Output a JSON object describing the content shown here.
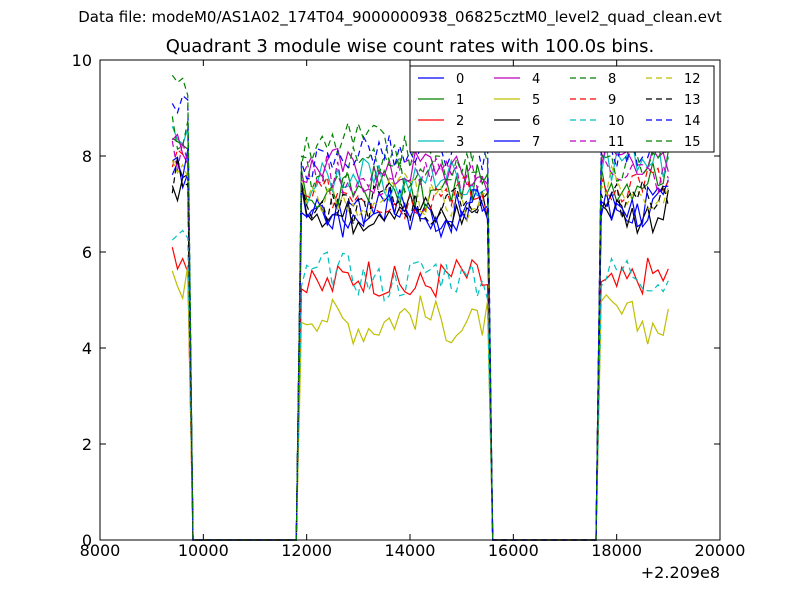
{
  "figure": {
    "suptitle": "Data file: modeM0/AS1A02_174T04_9000000938_06825cztM0_level2_quad_clean.evt",
    "title": "Quadrant 3 module wise count rates with 100.0s bins."
  },
  "chart_data": {
    "type": "line",
    "xlabel": "",
    "ylabel": "",
    "x_offset_label": "+2.209e8",
    "xlim": [
      8000,
      20000
    ],
    "ylim": [
      0,
      10
    ],
    "xticks": [
      "8000",
      "10000",
      "12000",
      "14000",
      "16000",
      "18000",
      "20000"
    ],
    "yticks": [
      "0",
      "2",
      "4",
      "6",
      "8",
      "10"
    ],
    "grid": false,
    "legend": {
      "position": "top-right",
      "columns": 4
    },
    "segments": [
      {
        "start": 9400,
        "end": 9700,
        "step": 100
      },
      {
        "start": 11900,
        "end": 15500,
        "step": 100
      },
      {
        "start": 17700,
        "end": 19000,
        "step": 100
      }
    ],
    "gaps": [
      [
        9700,
        9800,
        11800,
        11900
      ],
      [
        15500,
        15600,
        17600,
        17700
      ]
    ],
    "series": [
      {
        "name": "0",
        "color": "#0000ff",
        "dash": "solid",
        "levels": [
          7.6,
          6.9,
          7.0
        ]
      },
      {
        "name": "1",
        "color": "#008000",
        "dash": "solid",
        "levels": [
          8.0,
          7.3,
          7.6
        ]
      },
      {
        "name": "2",
        "color": "#ff0000",
        "dash": "solid",
        "levels": [
          5.9,
          5.4,
          5.4
        ]
      },
      {
        "name": "3",
        "color": "#00bfbf",
        "dash": "solid",
        "levels": [
          8.4,
          7.5,
          7.9
        ]
      },
      {
        "name": "4",
        "color": "#bf00bf",
        "dash": "solid",
        "levels": [
          8.2,
          7.7,
          7.9
        ]
      },
      {
        "name": "5",
        "color": "#bfbf00",
        "dash": "solid",
        "levels": [
          5.5,
          4.6,
          4.6
        ]
      },
      {
        "name": "6",
        "color": "#000000",
        "dash": "solid",
        "levels": [
          7.4,
          6.9,
          6.9
        ]
      },
      {
        "name": "7",
        "color": "#0000ff",
        "dash": "solid",
        "levels": [
          7.6,
          6.8,
          7.0
        ]
      },
      {
        "name": "8",
        "color": "#008000",
        "dash": "dashed",
        "levels": [
          8.3,
          7.7,
          7.8
        ]
      },
      {
        "name": "9",
        "color": "#ff0000",
        "dash": "dashed",
        "levels": [
          7.9,
          7.2,
          7.4
        ]
      },
      {
        "name": "10",
        "color": "#00bfbf",
        "dash": "dashed",
        "levels": [
          6.3,
          5.5,
          5.5
        ]
      },
      {
        "name": "11",
        "color": "#bf00bf",
        "dash": "dashed",
        "levels": [
          8.1,
          7.6,
          7.7
        ]
      },
      {
        "name": "12",
        "color": "#bfbf00",
        "dash": "dashed",
        "levels": [
          7.8,
          7.1,
          7.3
        ]
      },
      {
        "name": "13",
        "color": "#000000",
        "dash": "dashed",
        "levels": [
          7.5,
          7.0,
          7.2
        ]
      },
      {
        "name": "14",
        "color": "#0000ff",
        "dash": "dashed",
        "levels": [
          8.8,
          8.0,
          8.2
        ]
      },
      {
        "name": "15",
        "color": "#008000",
        "dash": "dashed",
        "levels": [
          9.2,
          8.2,
          8.4
        ]
      }
    ]
  }
}
